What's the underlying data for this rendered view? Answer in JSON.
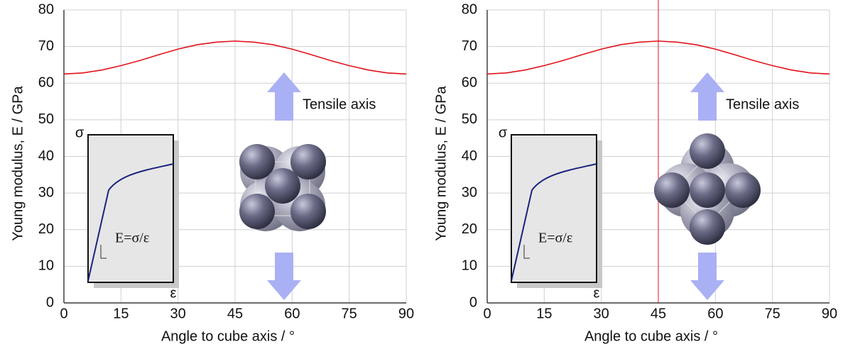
{
  "chart_data": [
    {
      "type": "line",
      "x_label": "Angle to cube axis / °",
      "y_label": "Young modulus, E / GPa",
      "x": [
        0,
        5,
        10,
        15,
        20,
        25,
        30,
        35,
        40,
        45,
        50,
        55,
        60,
        65,
        70,
        75,
        80,
        85,
        90
      ],
      "series": [
        {
          "color": "#e3121b",
          "values": [
            62.5,
            62.8,
            63.6,
            64.8,
            66.2,
            67.8,
            69.3,
            70.5,
            71.2,
            71.5,
            71.2,
            70.5,
            69.3,
            67.8,
            66.2,
            64.8,
            63.6,
            62.8,
            62.5
          ]
        }
      ],
      "xlim": [
        0,
        90
      ],
      "xticks": [
        0,
        15,
        30,
        45,
        60,
        75,
        90
      ],
      "ylim": [
        0,
        80
      ],
      "yticks": [
        0,
        10,
        20,
        30,
        40,
        50,
        60,
        70,
        80
      ],
      "grid": true,
      "arrow_label": "Tensile axis",
      "inset": {
        "y_label": "σ",
        "x_label": "ε",
        "slope_label": "E=σ/ε"
      }
    },
    {
      "type": "line",
      "x_label": "Angle to cube axis / °",
      "y_label": "Young modulus, E / GPa",
      "x": [
        0,
        5,
        10,
        15,
        20,
        25,
        30,
        35,
        40,
        45,
        50,
        55,
        60,
        65,
        70,
        75,
        80,
        85,
        90
      ],
      "series": [
        {
          "color": "#e3121b",
          "values": [
            62.5,
            62.8,
            63.6,
            64.8,
            66.2,
            67.8,
            69.3,
            70.5,
            71.2,
            71.5,
            71.2,
            70.5,
            69.3,
            67.8,
            66.2,
            64.8,
            63.6,
            62.8,
            62.5
          ]
        }
      ],
      "xlim": [
        0,
        90
      ],
      "xticks": [
        0,
        15,
        30,
        45,
        60,
        75,
        90
      ],
      "ylim": [
        0,
        80
      ],
      "yticks": [
        0,
        10,
        20,
        30,
        40,
        50,
        60,
        70,
        80
      ],
      "grid": true,
      "vline": 45,
      "arrow_label": "Tensile axis",
      "inset": {
        "y_label": "σ",
        "x_label": "ε",
        "slope_label": "E=σ/ε"
      }
    }
  ]
}
